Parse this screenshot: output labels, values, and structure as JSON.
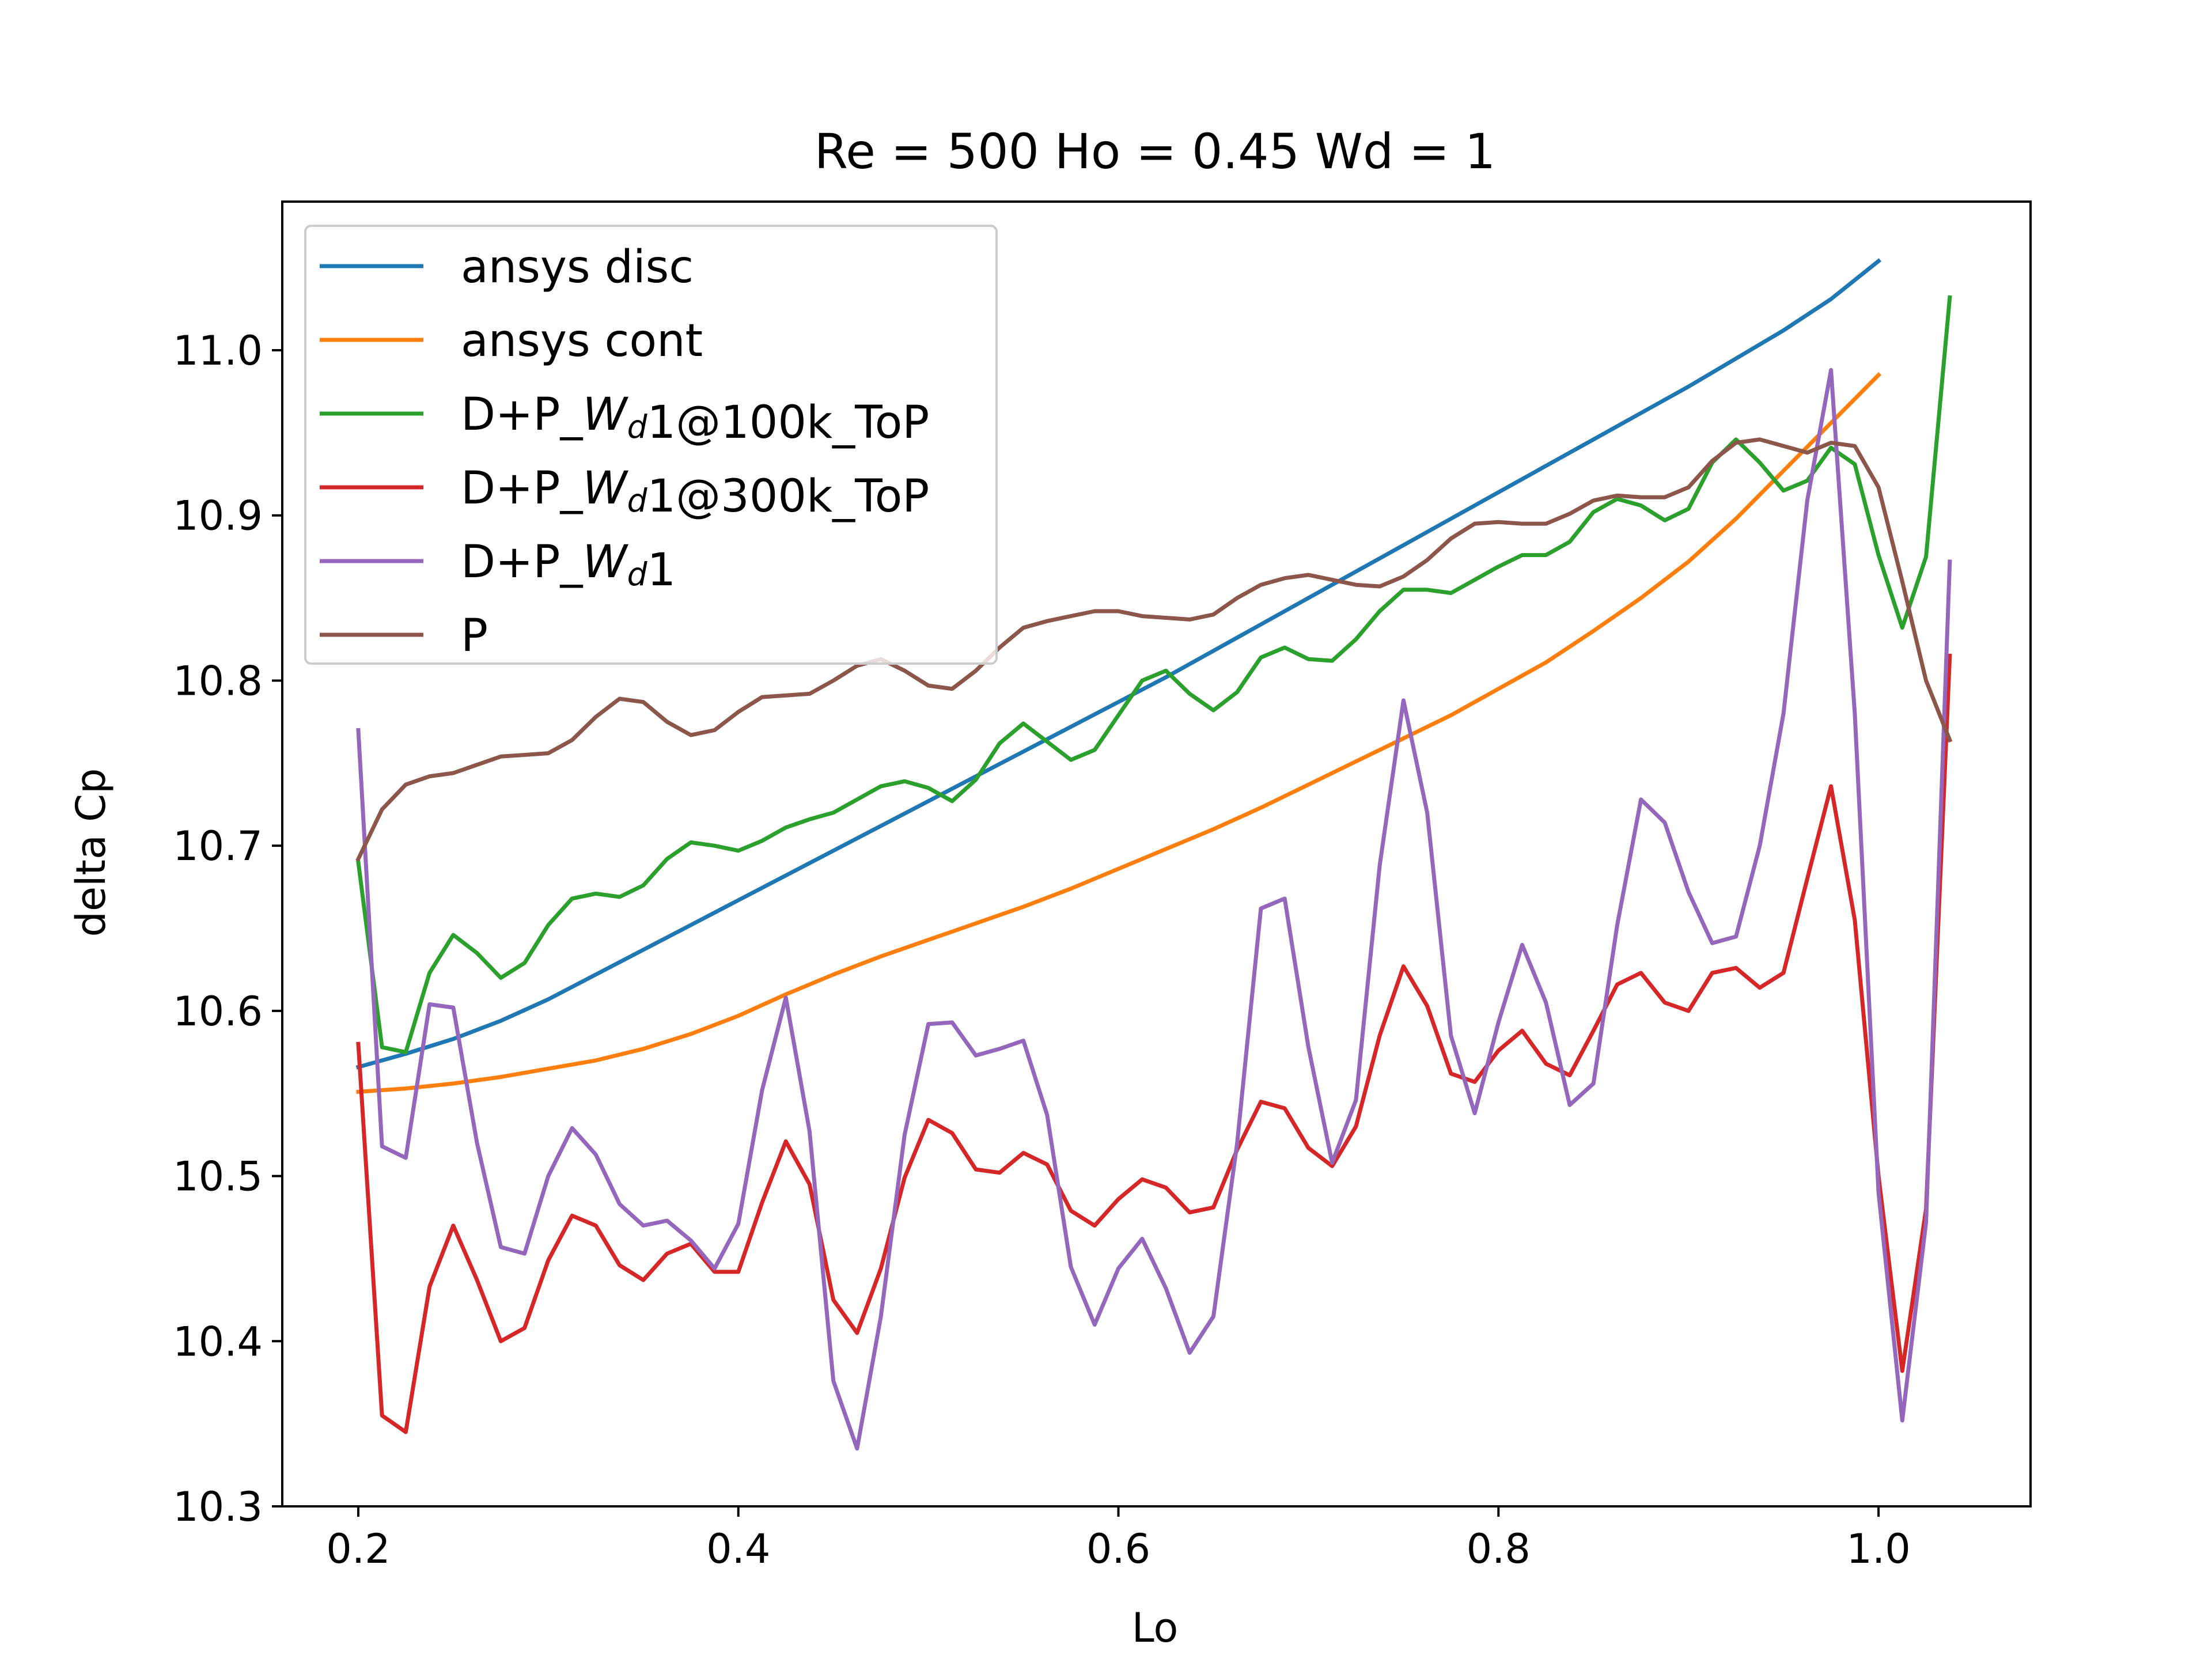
{
  "chart_data": {
    "type": "line",
    "title": "Re = 500 Ho = 0.45 Wd = 1",
    "xlabel": "Lo",
    "ylabel": "delta Cp",
    "xlim": [
      0.16,
      1.08
    ],
    "ylim": [
      10.3,
      11.09
    ],
    "xticks": [
      0.2,
      0.4,
      0.6,
      0.8,
      1.0
    ],
    "yticks": [
      10.3,
      10.4,
      10.5,
      10.6,
      10.7,
      10.8,
      10.9,
      11.0
    ],
    "grid": false,
    "legend_position": "top-left",
    "series": [
      {
        "name": "ansys disc",
        "color": "#1f77b4",
        "x": [
          0.2,
          0.225,
          0.25,
          0.275,
          0.3,
          0.325,
          0.35,
          0.375,
          0.4,
          0.425,
          0.45,
          0.475,
          0.5,
          0.525,
          0.55,
          0.575,
          0.6,
          0.625,
          0.65,
          0.675,
          0.7,
          0.725,
          0.75,
          0.775,
          0.8,
          0.825,
          0.85,
          0.875,
          0.9,
          0.925,
          0.95,
          0.975,
          1.0
        ],
        "values": [
          10.566,
          10.574,
          10.583,
          10.594,
          10.607,
          10.622,
          10.637,
          10.652,
          10.667,
          10.682,
          10.697,
          10.712,
          10.727,
          10.742,
          10.757,
          10.772,
          10.787,
          10.802,
          10.818,
          10.834,
          10.85,
          10.866,
          10.882,
          10.898,
          10.914,
          10.93,
          10.946,
          10.962,
          10.978,
          10.995,
          11.012,
          11.031,
          11.054
        ]
      },
      {
        "name": "ansys cont",
        "color": "#ff7f0e",
        "x": [
          0.2,
          0.225,
          0.25,
          0.275,
          0.3,
          0.325,
          0.35,
          0.375,
          0.4,
          0.425,
          0.45,
          0.475,
          0.5,
          0.525,
          0.55,
          0.575,
          0.6,
          0.625,
          0.65,
          0.675,
          0.7,
          0.725,
          0.75,
          0.775,
          0.8,
          0.825,
          0.85,
          0.875,
          0.9,
          0.925,
          0.95,
          0.975,
          1.0
        ],
        "values": [
          10.551,
          10.553,
          10.556,
          10.56,
          10.565,
          10.57,
          10.577,
          10.586,
          10.597,
          10.61,
          10.622,
          10.633,
          10.643,
          10.653,
          10.663,
          10.674,
          10.686,
          10.698,
          10.71,
          10.723,
          10.737,
          10.751,
          10.765,
          10.779,
          10.795,
          10.811,
          10.83,
          10.85,
          10.872,
          10.898,
          10.927,
          10.956,
          10.985
        ]
      },
      {
        "name": "D+P_$W_d$1@100k_ToP",
        "color": "#2ca02c",
        "x": [
          0.2,
          0.2125,
          0.225,
          0.2375,
          0.25,
          0.2625,
          0.275,
          0.2875,
          0.3,
          0.3125,
          0.325,
          0.3375,
          0.35,
          0.3625,
          0.375,
          0.3875,
          0.4,
          0.4125,
          0.425,
          0.4375,
          0.45,
          0.4625,
          0.475,
          0.4875,
          0.5,
          0.5125,
          0.525,
          0.5375,
          0.55,
          0.5625,
          0.575,
          0.5875,
          0.6,
          0.6125,
          0.625,
          0.6375,
          0.65,
          0.6625,
          0.675,
          0.6875,
          0.7,
          0.7125,
          0.725,
          0.7375,
          0.75,
          0.7625,
          0.775,
          0.7875,
          0.8,
          0.8125,
          0.825,
          0.8375,
          0.85,
          0.8625,
          0.875,
          0.8875,
          0.9,
          0.9125,
          0.925,
          0.9375,
          0.95,
          0.9625,
          0.975,
          0.9875,
          1.0,
          1.0125,
          1.025,
          1.0375
        ],
        "values": [
          10.69,
          10.578,
          10.575,
          10.623,
          10.646,
          10.635,
          10.62,
          10.629,
          10.652,
          10.668,
          10.671,
          10.669,
          10.676,
          10.692,
          10.702,
          10.7,
          10.697,
          10.703,
          10.711,
          10.716,
          10.72,
          10.728,
          10.736,
          10.739,
          10.735,
          10.727,
          10.74,
          10.762,
          10.774,
          10.763,
          10.752,
          10.758,
          10.779,
          10.8,
          10.806,
          10.792,
          10.782,
          10.793,
          10.814,
          10.82,
          10.813,
          10.812,
          10.825,
          10.842,
          10.855,
          10.855,
          10.853,
          10.861,
          10.869,
          10.876,
          10.876,
          10.884,
          10.902,
          10.91,
          10.906,
          10.897,
          10.904,
          10.932,
          10.946,
          10.932,
          10.915,
          10.921,
          10.941,
          10.931,
          10.876,
          10.832,
          10.875,
          11.032
        ]
      },
      {
        "name": "D+P_$W_d$1@300k_ToP",
        "color": "#d62728",
        "x": [
          0.2,
          0.2125,
          0.225,
          0.2375,
          0.25,
          0.2625,
          0.275,
          0.2875,
          0.3,
          0.3125,
          0.325,
          0.3375,
          0.35,
          0.3625,
          0.375,
          0.3875,
          0.4,
          0.4125,
          0.425,
          0.4375,
          0.45,
          0.4625,
          0.475,
          0.4875,
          0.5,
          0.5125,
          0.525,
          0.5375,
          0.55,
          0.5625,
          0.575,
          0.5875,
          0.6,
          0.6125,
          0.625,
          0.6375,
          0.65,
          0.6625,
          0.675,
          0.6875,
          0.7,
          0.7125,
          0.725,
          0.7375,
          0.75,
          0.7625,
          0.775,
          0.7875,
          0.8,
          0.8125,
          0.825,
          0.8375,
          0.85,
          0.8625,
          0.875,
          0.8875,
          0.9,
          0.9125,
          0.925,
          0.9375,
          0.95,
          0.9625,
          0.975,
          0.9875,
          1.0,
          1.0125,
          1.025,
          1.0375
        ],
        "values": [
          10.58,
          10.355,
          10.345,
          10.433,
          10.47,
          10.437,
          10.4,
          10.408,
          10.449,
          10.476,
          10.47,
          10.446,
          10.437,
          10.453,
          10.459,
          10.442,
          10.442,
          10.484,
          10.521,
          10.495,
          10.425,
          10.405,
          10.444,
          10.499,
          10.534,
          10.526,
          10.504,
          10.502,
          10.514,
          10.507,
          10.479,
          10.47,
          10.486,
          10.498,
          10.493,
          10.478,
          10.481,
          10.516,
          10.545,
          10.541,
          10.517,
          10.506,
          10.53,
          10.585,
          10.627,
          10.603,
          10.562,
          10.557,
          10.576,
          10.588,
          10.568,
          10.561,
          10.588,
          10.616,
          10.623,
          10.605,
          10.6,
          10.623,
          10.626,
          10.614,
          10.623,
          10.68,
          10.736,
          10.655,
          10.5,
          10.382,
          10.48,
          10.815
        ]
      },
      {
        "name": "D+P_$W_d$1",
        "color": "#9467bd",
        "x": [
          0.2,
          0.2125,
          0.225,
          0.2375,
          0.25,
          0.2625,
          0.275,
          0.2875,
          0.3,
          0.3125,
          0.325,
          0.3375,
          0.35,
          0.3625,
          0.375,
          0.3875,
          0.4,
          0.4125,
          0.425,
          0.4375,
          0.45,
          0.4625,
          0.475,
          0.4875,
          0.5,
          0.5125,
          0.525,
          0.5375,
          0.55,
          0.5625,
          0.575,
          0.5875,
          0.6,
          0.6125,
          0.625,
          0.6375,
          0.65,
          0.6625,
          0.675,
          0.6875,
          0.7,
          0.7125,
          0.725,
          0.7375,
          0.75,
          0.7625,
          0.775,
          0.7875,
          0.8,
          0.8125,
          0.825,
          0.8375,
          0.85,
          0.8625,
          0.875,
          0.8875,
          0.9,
          0.9125,
          0.925,
          0.9375,
          0.95,
          0.9625,
          0.975,
          0.9875,
          1.0,
          1.0125,
          1.025,
          1.0375
        ],
        "values": [
          10.77,
          10.518,
          10.511,
          10.604,
          10.602,
          10.52,
          10.457,
          10.453,
          10.5,
          10.529,
          10.513,
          10.483,
          10.47,
          10.473,
          10.461,
          10.444,
          10.471,
          10.552,
          10.608,
          10.527,
          10.376,
          10.335,
          10.415,
          10.525,
          10.592,
          10.593,
          10.573,
          10.577,
          10.582,
          10.537,
          10.445,
          10.41,
          10.444,
          10.462,
          10.432,
          10.393,
          10.415,
          10.52,
          10.662,
          10.668,
          10.578,
          10.508,
          10.546,
          10.688,
          10.788,
          10.72,
          10.585,
          10.538,
          10.593,
          10.64,
          10.605,
          10.543,
          10.556,
          10.652,
          10.728,
          10.714,
          10.672,
          10.641,
          10.645,
          10.7,
          10.78,
          10.909,
          10.988,
          10.78,
          10.49,
          10.352,
          10.472,
          10.872
        ]
      },
      {
        "name": "P",
        "color": "#8c564b",
        "x": [
          0.2,
          0.2125,
          0.225,
          0.2375,
          0.25,
          0.2625,
          0.275,
          0.2875,
          0.3,
          0.3125,
          0.325,
          0.3375,
          0.35,
          0.3625,
          0.375,
          0.3875,
          0.4,
          0.4125,
          0.425,
          0.4375,
          0.45,
          0.4625,
          0.475,
          0.4875,
          0.5,
          0.5125,
          0.525,
          0.5375,
          0.55,
          0.5625,
          0.575,
          0.5875,
          0.6,
          0.6125,
          0.625,
          0.6375,
          0.65,
          0.6625,
          0.675,
          0.6875,
          0.7,
          0.7125,
          0.725,
          0.7375,
          0.75,
          0.7625,
          0.775,
          0.7875,
          0.8,
          0.8125,
          0.825,
          0.8375,
          0.85,
          0.8625,
          0.875,
          0.8875,
          0.9,
          0.9125,
          0.925,
          0.9375,
          0.95,
          0.9625,
          0.975,
          0.9875,
          1.0,
          1.0125,
          1.025,
          1.0375
        ],
        "values": [
          10.692,
          10.722,
          10.737,
          10.742,
          10.744,
          10.749,
          10.754,
          10.755,
          10.756,
          10.764,
          10.778,
          10.789,
          10.787,
          10.775,
          10.767,
          10.77,
          10.781,
          10.79,
          10.791,
          10.792,
          10.8,
          10.809,
          10.813,
          10.806,
          10.797,
          10.795,
          10.806,
          10.82,
          10.832,
          10.836,
          10.839,
          10.842,
          10.842,
          10.839,
          10.838,
          10.837,
          10.84,
          10.85,
          10.858,
          10.862,
          10.864,
          10.861,
          10.858,
          10.857,
          10.863,
          10.873,
          10.886,
          10.895,
          10.896,
          10.895,
          10.895,
          10.901,
          10.909,
          10.912,
          10.911,
          10.911,
          10.917,
          10.933,
          10.944,
          10.946,
          10.942,
          10.938,
          10.944,
          10.942,
          10.917,
          10.86,
          10.8,
          10.764
        ]
      }
    ]
  }
}
